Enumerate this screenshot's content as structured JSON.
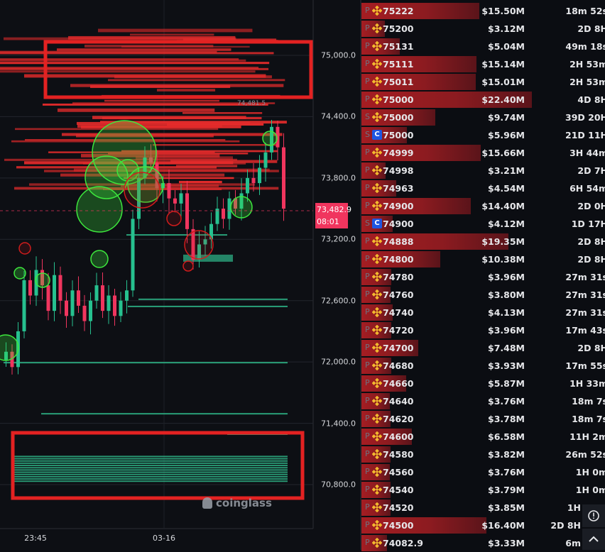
{
  "chart": {
    "price_axis": [
      "75,000.0",
      "74,400.0",
      "73,800.0",
      "73,200.0",
      "72,600.0",
      "72,000.0",
      "71,400.0",
      "70,800.0"
    ],
    "price_axis_values": [
      75000,
      74400,
      73800,
      73200,
      72600,
      72000,
      71400,
      70800
    ],
    "time_axis": [
      "23:45",
      "03-16"
    ],
    "current_price": "73,482.9",
    "countdown": "08:01",
    "high_label": "74,481.5",
    "watermark": "coinglass",
    "candle_closes": [
      72100,
      71950,
      72300,
      72800,
      72650,
      72900,
      72750,
      72500,
      72850,
      72600,
      72450,
      72700,
      72550,
      72400,
      72600,
      72750,
      72500,
      72650,
      72450,
      72600,
      72700,
      73400,
      73800,
      74000,
      73950,
      73700,
      73750,
      73600,
      73550,
      73650,
      73300,
      73000,
      73150,
      73200,
      73350,
      73500,
      73400,
      73600,
      73500,
      73650,
      73800,
      73750,
      73900,
      74050,
      74300,
      74100,
      73500
    ],
    "colors": {
      "up": "#26c18f",
      "down": "#f0355e",
      "ask_heat": "#e32b2b",
      "bid_heat": "#2fb88a",
      "highlight": "#e32222",
      "price_tag": "#f0355e"
    }
  },
  "orders": [
    {
      "ex": "P",
      "icon": "binance-icon",
      "price": "75222",
      "amount": "$15.50M",
      "value": 15.5,
      "time": "18m 52s"
    },
    {
      "ex": "P",
      "icon": "binance-icon",
      "price": "75200",
      "amount": "$3.12M",
      "value": 3.12,
      "time": "2D 8H"
    },
    {
      "ex": "P",
      "icon": "binance-icon",
      "price": "75131",
      "amount": "$5.04M",
      "value": 5.04,
      "time": "49m 18s"
    },
    {
      "ex": "P",
      "icon": "binance-icon",
      "price": "75111",
      "amount": "$15.14M",
      "value": 15.14,
      "time": "2H 53m"
    },
    {
      "ex": "P",
      "icon": "binance-icon",
      "price": "75011",
      "amount": "$15.01M",
      "value": 15.01,
      "time": "2H 53m"
    },
    {
      "ex": "P",
      "icon": "binance-icon",
      "price": "75000",
      "amount": "$22.40M",
      "value": 22.4,
      "time": "4D 8H"
    },
    {
      "ex": "S",
      "icon": "binance-icon",
      "price": "75000",
      "amount": "$9.74M",
      "value": 9.74,
      "time": "39D 20H"
    },
    {
      "ex": "S",
      "icon": "coinbase-icon",
      "price": "75000",
      "amount": "$5.96M",
      "value": 5.96,
      "time": "21D 11H"
    },
    {
      "ex": "P",
      "icon": "binance-icon",
      "price": "74999",
      "amount": "$15.66M",
      "value": 15.66,
      "time": "3H 44m"
    },
    {
      "ex": "P",
      "icon": "binance-icon",
      "price": "74998",
      "amount": "$3.21M",
      "value": 3.21,
      "time": "2D 7H"
    },
    {
      "ex": "P",
      "icon": "binance-icon",
      "price": "74963",
      "amount": "$4.54M",
      "value": 4.54,
      "time": "6H 54m"
    },
    {
      "ex": "P",
      "icon": "binance-icon",
      "price": "74900",
      "amount": "$14.40M",
      "value": 14.4,
      "time": "2D 0H"
    },
    {
      "ex": "S",
      "icon": "coinbase-icon",
      "price": "74900",
      "amount": "$4.12M",
      "value": 4.12,
      "time": "1D 17H"
    },
    {
      "ex": "P",
      "icon": "binance-icon",
      "price": "74888",
      "amount": "$19.35M",
      "value": 19.35,
      "time": "2D 8H"
    },
    {
      "ex": "P",
      "icon": "binance-icon",
      "price": "74800",
      "amount": "$10.38M",
      "value": 10.38,
      "time": "2D 8H"
    },
    {
      "ex": "P",
      "icon": "binance-icon",
      "price": "74780",
      "amount": "$3.96M",
      "value": 3.96,
      "time": "27m 31s"
    },
    {
      "ex": "P",
      "icon": "binance-icon",
      "price": "74760",
      "amount": "$3.80M",
      "value": 3.8,
      "time": "27m 31s"
    },
    {
      "ex": "P",
      "icon": "binance-icon",
      "price": "74740",
      "amount": "$4.13M",
      "value": 4.13,
      "time": "27m 31s"
    },
    {
      "ex": "P",
      "icon": "binance-icon",
      "price": "74720",
      "amount": "$3.96M",
      "value": 3.96,
      "time": "17m 43s"
    },
    {
      "ex": "P",
      "icon": "binance-icon",
      "price": "74700",
      "amount": "$7.48M",
      "value": 7.48,
      "time": "2D 8H"
    },
    {
      "ex": "P",
      "icon": "binance-icon",
      "price": "74680",
      "amount": "$3.93M",
      "value": 3.93,
      "time": "17m 55s"
    },
    {
      "ex": "P",
      "icon": "binance-icon",
      "price": "74660",
      "amount": "$5.87M",
      "value": 5.87,
      "time": "1H 33m"
    },
    {
      "ex": "P",
      "icon": "binance-icon",
      "price": "74640",
      "amount": "$3.76M",
      "value": 3.76,
      "time": "18m 7s"
    },
    {
      "ex": "P",
      "icon": "binance-icon",
      "price": "74620",
      "amount": "$3.78M",
      "value": 3.78,
      "time": "18m 7s"
    },
    {
      "ex": "P",
      "icon": "binance-icon",
      "price": "74600",
      "amount": "$6.58M",
      "value": 6.58,
      "time": "11H 2m"
    },
    {
      "ex": "P",
      "icon": "binance-icon",
      "price": "74580",
      "amount": "$3.82M",
      "value": 3.82,
      "time": "26m 52s"
    },
    {
      "ex": "P",
      "icon": "binance-icon",
      "price": "74560",
      "amount": "$3.76M",
      "value": 3.76,
      "time": "1H 0m"
    },
    {
      "ex": "P",
      "icon": "binance-icon",
      "price": "74540",
      "amount": "$3.79M",
      "value": 3.79,
      "time": "1H 0m"
    },
    {
      "ex": "P",
      "icon": "binance-icon",
      "price": "74520",
      "amount": "$3.85M",
      "value": 3.85,
      "time": "1H"
    },
    {
      "ex": "P",
      "icon": "binance-icon",
      "price": "74500",
      "amount": "$16.40M",
      "value": 16.4,
      "time": "2D 8H"
    },
    {
      "ex": "P",
      "icon": "binance-icon",
      "price": "74082.9",
      "amount": "$3.33M",
      "value": 3.33,
      "time": "6m"
    }
  ],
  "controls": {
    "settings_icon": "alert-settings-icon",
    "scroll_top_icon": "chevron-up-icon"
  }
}
